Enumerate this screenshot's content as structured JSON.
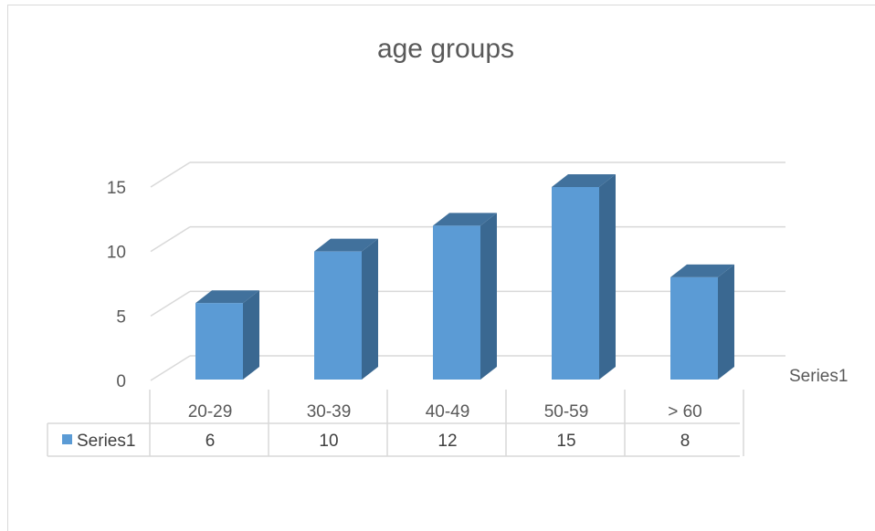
{
  "chart_data": {
    "type": "bar",
    "title": "age groups",
    "categories": [
      "20-29",
      "30-39",
      "40-49",
      "50-59",
      "> 60"
    ],
    "series": [
      {
        "name": "Series1",
        "values": [
          6,
          10,
          12,
          15,
          8
        ],
        "color": "#5b9bd5"
      }
    ],
    "y_ticks": [
      "0",
      "5",
      "10",
      "15"
    ],
    "ylim": [
      0,
      15
    ],
    "depth_axis_label": "Series1",
    "data_table": true,
    "gridlines": true,
    "style": "3d-column"
  }
}
